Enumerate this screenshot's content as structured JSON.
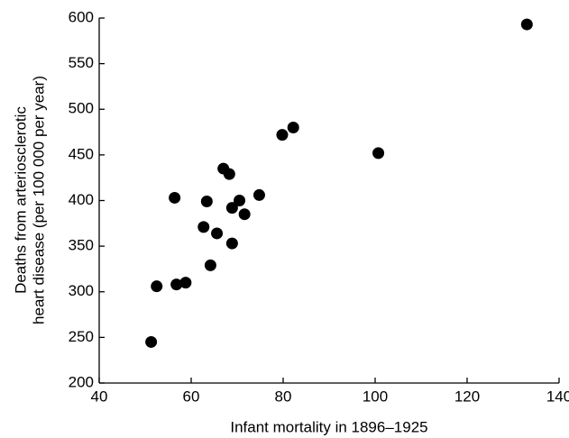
{
  "chart_data": {
    "type": "scatter",
    "x_label": "Infant mortality in 1896–1925",
    "y_label": [
      "Deaths from arteriosclerotic",
      "heart disease (per 100 000 per year)"
    ],
    "color": "#000000",
    "series": [
      {
        "x": [
          133.0,
          51.3,
          52.5,
          56.8,
          58.8,
          56.4,
          62.7,
          63.4,
          64.2,
          65.6,
          67.0,
          68.3,
          68.9,
          68.9,
          70.5,
          71.6,
          74.8,
          79.8,
          82.2,
          100.7
        ],
        "values": [
          593,
          245,
          306,
          308,
          310,
          403,
          371,
          399,
          329,
          364,
          435,
          429,
          392,
          353,
          400,
          385,
          406,
          472,
          480,
          452
        ]
      }
    ],
    "xlim": [
      40,
      140
    ],
    "xticks": [
      40,
      60,
      80,
      100,
      120,
      140
    ],
    "ylim": [
      200,
      600
    ],
    "yticks": [
      200,
      250,
      300,
      350,
      400,
      450,
      500,
      550,
      600
    ]
  }
}
